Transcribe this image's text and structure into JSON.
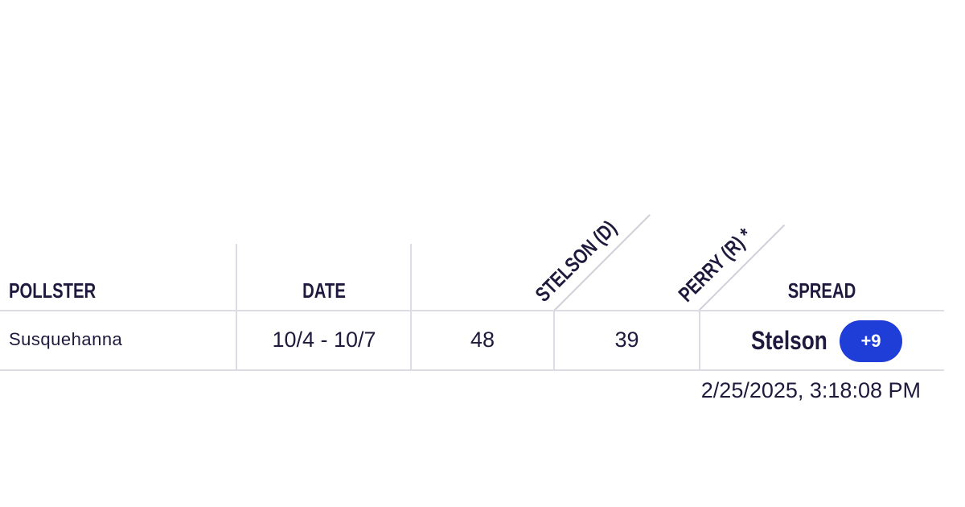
{
  "table": {
    "headers": {
      "pollster": "POLLSTER",
      "date": "DATE",
      "candidate_a": "STELSON (D)",
      "candidate_b": "PERRY (R) *",
      "spread": "SPREAD"
    },
    "rows": [
      {
        "pollster": "Susquehanna",
        "date": "10/4 - 10/7",
        "candidate_a_value": "48",
        "candidate_b_value": "39",
        "spread_leader": "Stelson",
        "spread_margin": "+9"
      }
    ]
  },
  "timestamp": "2/25/2025, 3:18:08 PM",
  "colors": {
    "text": "#1f1a3d",
    "badge": "#1f3ed8",
    "divider": "#dcdce4"
  }
}
